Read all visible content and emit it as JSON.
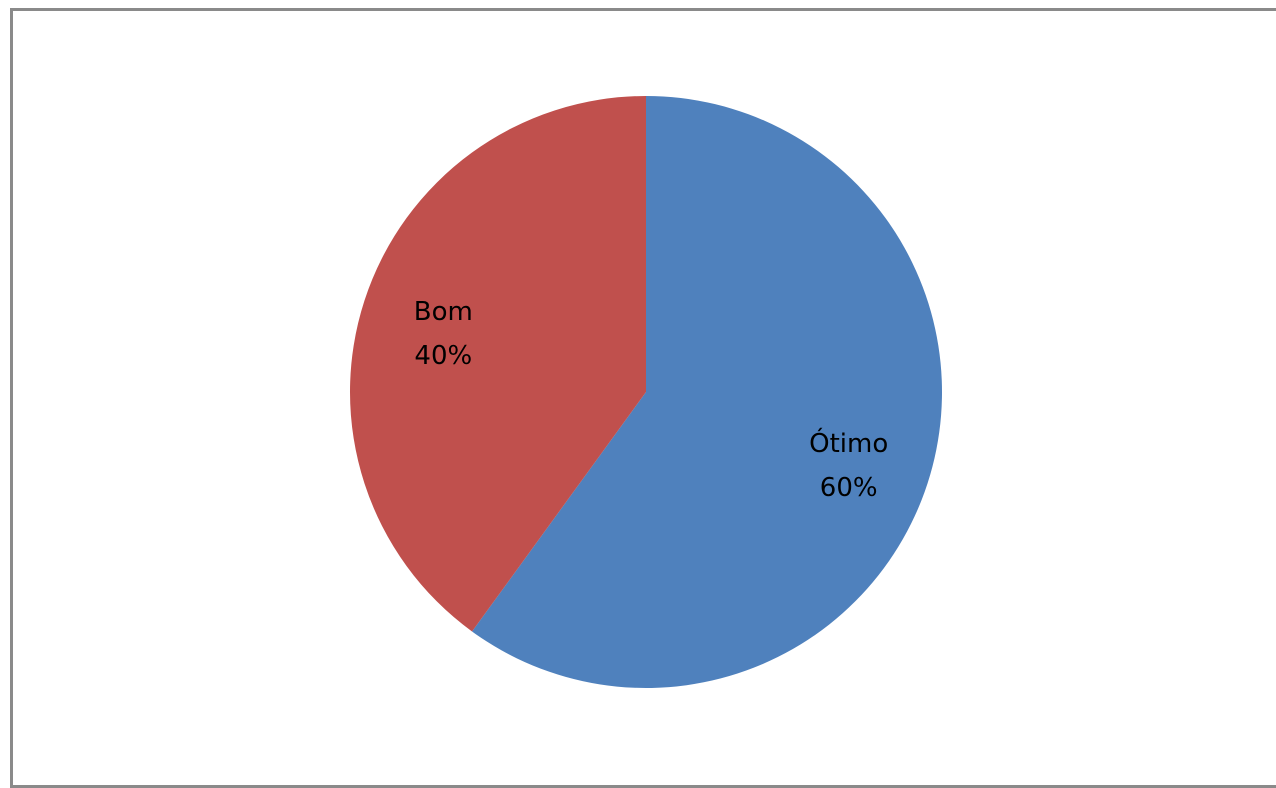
{
  "chart_data": {
    "type": "pie",
    "slices": [
      {
        "name": "Ótimo",
        "value": 60,
        "label": "60%",
        "color": "#4f81bd"
      },
      {
        "name": "Bom",
        "value": 40,
        "label": "40%",
        "color": "#c0504d"
      }
    ],
    "start_angle_deg": 0,
    "direction": "clockwise",
    "legend": "none",
    "data_labels": "inside"
  }
}
